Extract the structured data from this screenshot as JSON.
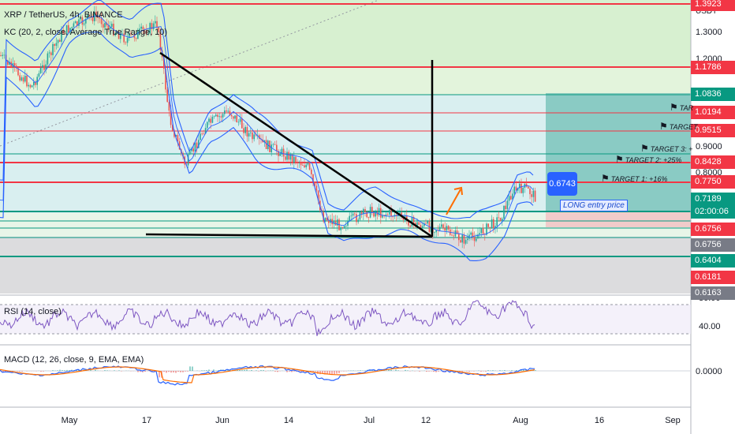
{
  "header": {
    "symbol_line": "XRP / TetherUS, 4h, BINANCE",
    "indicator_kc": "KC (20, 2, close, Average True Range, 10)"
  },
  "axis": {
    "currency": "USDT",
    "price_ticks": [
      "1.3000",
      "1.2000",
      "0.9000",
      "0.8000"
    ],
    "rsi_ticks": [
      "80.00",
      "40.00"
    ],
    "macd_ticks": [
      "0.0000"
    ],
    "time_labels": [
      "May",
      "17",
      "Jun",
      "14",
      "Jul",
      "12",
      "Aug",
      "16",
      "Sep"
    ]
  },
  "levels": [
    {
      "label": "1.3923",
      "color": "#f23645"
    },
    {
      "label": "1.1786",
      "color": "#f23645"
    },
    {
      "label": "1.0836",
      "color": "#089981"
    },
    {
      "label": "1.0194",
      "color": "#f23645"
    },
    {
      "label": "0.9515",
      "color": "#f23645"
    },
    {
      "label": "0.8428",
      "color": "#f23645"
    },
    {
      "label": "0.7750",
      "color": "#f23645"
    },
    {
      "label": "0.7189",
      "color": "#089981"
    },
    {
      "label": "02:00:06",
      "color": "#089981"
    },
    {
      "label": "0.6756",
      "color": "#f23645"
    },
    {
      "label": "0.6756",
      "color": "#787b86"
    },
    {
      "label": "0.6404",
      "color": "#089981"
    },
    {
      "label": "0.6181",
      "color": "#f23645"
    },
    {
      "label": "0.6163",
      "color": "#787b86"
    }
  ],
  "targets": [
    {
      "label": "TARGET 1:  +16%"
    },
    {
      "label": "TARGET 2:  +25%"
    },
    {
      "label": "TARGET 3:  +"
    },
    {
      "label": "TARGET"
    },
    {
      "label": "TAR"
    }
  ],
  "annotations": {
    "entry_label": "LONG entry price",
    "entry_badge": "0.6743"
  },
  "panes": {
    "rsi_label": "RSI (14, close)",
    "macd_label": "MACD (12, 26, close, 9, EMA, EMA)"
  },
  "colors": {
    "resistance": "#f23645",
    "support": "#089981",
    "price_line": "#787b86",
    "kc_band": "#2962ff",
    "rsi_line": "#7e57c2",
    "macd_line": "#2962ff",
    "signal_line": "#ff6d00",
    "entry_badge": "#2962ff"
  }
}
